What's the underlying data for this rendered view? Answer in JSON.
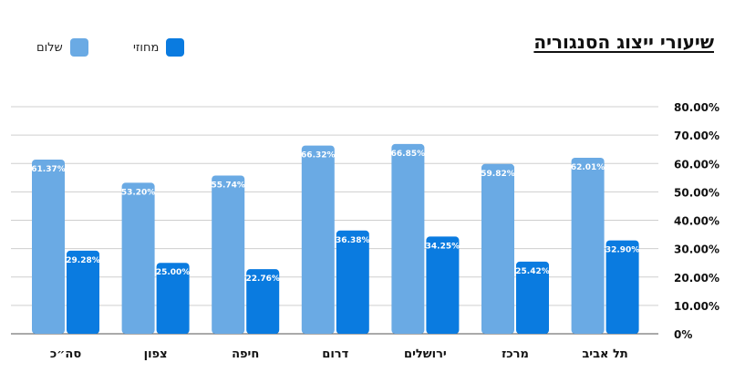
{
  "chart_data": {
    "type": "bar",
    "title": "שיעורי ייצוג הסנגוריה",
    "categories": [
      "תל אביב",
      "מרכז",
      "ירושלים",
      "דרום",
      "חיפה",
      "צפון",
      "סה״כ"
    ],
    "series": [
      {
        "name": "שלום",
        "color": "#6aaae4",
        "values": [
          62.01,
          59.82,
          66.85,
          66.32,
          55.74,
          53.2,
          61.37
        ]
      },
      {
        "name": "מחוזי",
        "color": "#0a7be0",
        "values": [
          32.9,
          25.42,
          34.25,
          36.38,
          22.76,
          25.0,
          29.28
        ]
      }
    ],
    "data_labels": [
      [
        "62.01%",
        "59.82%",
        "66.85%",
        "66.32%",
        "55.74%",
        "53.20%",
        "61.37%"
      ],
      [
        "32.90%",
        "25.42%",
        "34.25%",
        "36.38%",
        "22.76%",
        "25.00%",
        "29.28%"
      ]
    ],
    "y_ticks": [
      "0%",
      "10.00%",
      "20.00%",
      "30.00%",
      "40.00%",
      "50.00%",
      "60.00%",
      "70.00%",
      "80.00%"
    ],
    "ylim": [
      0,
      80
    ],
    "y_axis_position": "right",
    "grid": true,
    "legend_position": "top-left"
  }
}
